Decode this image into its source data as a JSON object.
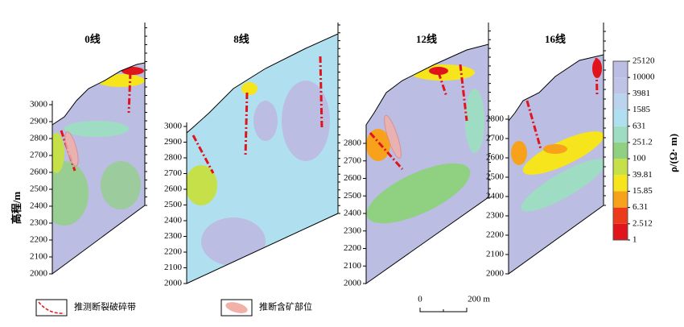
{
  "chart_data": [
    {
      "type": "section",
      "title": "0线",
      "ylabel": "高程/m",
      "ylim": [
        2000,
        3000
      ],
      "yticks": [
        2000,
        2100,
        2200,
        2300,
        2400,
        2500,
        2600,
        2700,
        2800,
        2900,
        3000
      ]
    },
    {
      "type": "section",
      "title": "8线",
      "ylim": [
        2000,
        3000
      ],
      "yticks": [
        2000,
        2100,
        2200,
        2300,
        2400,
        2500,
        2600,
        2700,
        2800,
        2900,
        3000
      ]
    },
    {
      "type": "section",
      "title": "12线",
      "ylim": [
        2000,
        2800
      ],
      "yticks": [
        2000,
        2100,
        2200,
        2300,
        2400,
        2500,
        2600,
        2700,
        2800
      ]
    },
    {
      "type": "section",
      "title": "16线",
      "ylim": [
        2000,
        2800
      ],
      "yticks": [
        2000,
        2100,
        2200,
        2300,
        2400,
        2500,
        2600,
        2700,
        2800
      ]
    }
  ],
  "colorbar": {
    "label": "ρ/(Ω· m)",
    "log": true,
    "lim": [
      1,
      25120
    ],
    "ticks": [
      1,
      2.512,
      6.31,
      15.85,
      39.81,
      100,
      251.2,
      631,
      1585,
      3981,
      10000,
      25120
    ],
    "colors": [
      "#e0141a",
      "#ee3a1c",
      "#f7a21a",
      "#f6e51c",
      "#c6e04a",
      "#8fd180",
      "#9fdcc4",
      "#b0e0ef",
      "#b9d4ec",
      "#bfc4e6",
      "#bcbde2"
    ]
  },
  "legend": [
    "推测断裂破碎带",
    "推断含矿部位"
  ],
  "scale_bar": [
    "0",
    "200 m"
  ]
}
